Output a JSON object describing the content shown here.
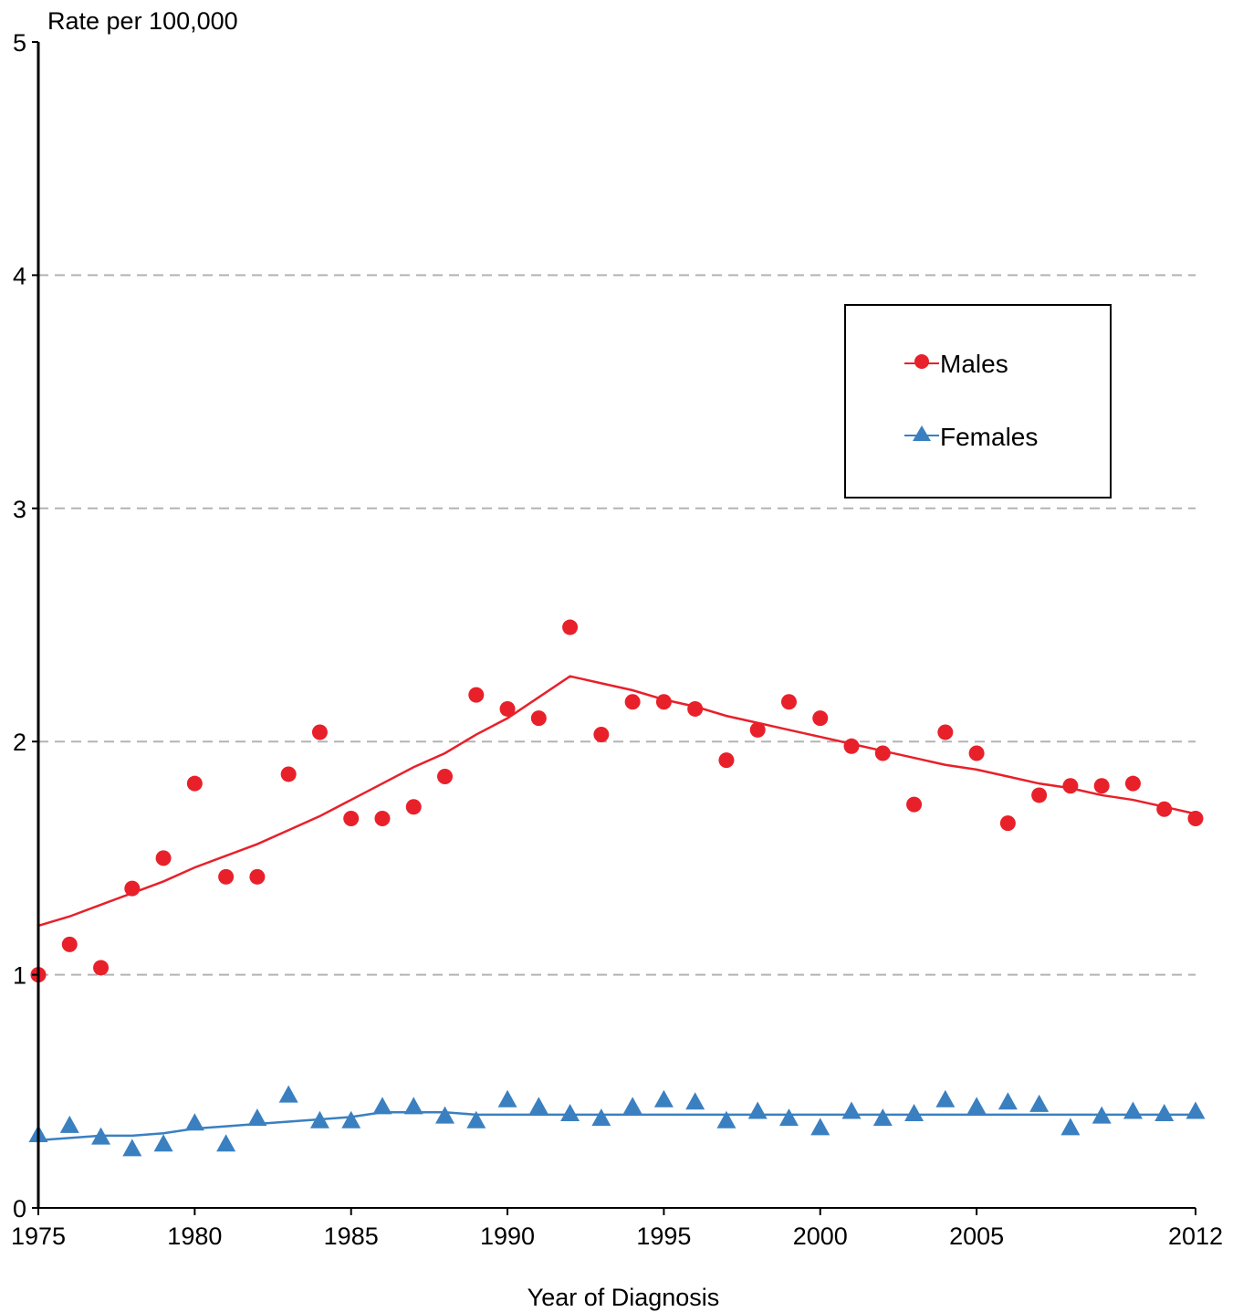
{
  "chart_data": {
    "type": "scatter",
    "ylabel": "Rate per 100,000",
    "xlabel": "Year of Diagnosis",
    "ylim": [
      0,
      5
    ],
    "xlim": [
      1975,
      2012
    ],
    "y_ticks": [
      "0",
      "1",
      "2",
      "3",
      "4",
      "5"
    ],
    "x_ticks": [
      "1975",
      "1980",
      "1985",
      "1990",
      "1995",
      "2000",
      "2005",
      "2012"
    ],
    "grid": "horizontal dashed",
    "legend_position": "top-right",
    "series": [
      {
        "name": "Males",
        "color": "#e8202a",
        "marker": "circle",
        "x": [
          1975,
          1976,
          1977,
          1978,
          1979,
          1980,
          1981,
          1982,
          1983,
          1984,
          1985,
          1986,
          1987,
          1988,
          1989,
          1990,
          1991,
          1992,
          1993,
          1994,
          1995,
          1996,
          1997,
          1998,
          1999,
          2000,
          2001,
          2002,
          2003,
          2004,
          2005,
          2006,
          2007,
          2008,
          2009,
          2010,
          2011,
          2012
        ],
        "values": [
          1.0,
          1.13,
          1.03,
          1.37,
          1.5,
          1.82,
          1.42,
          1.42,
          1.86,
          2.04,
          1.67,
          1.67,
          1.72,
          1.85,
          2.2,
          2.14,
          2.1,
          2.49,
          2.03,
          2.17,
          2.17,
          2.14,
          1.92,
          2.05,
          2.17,
          2.1,
          1.98,
          1.95,
          1.73,
          2.04,
          1.95,
          1.65,
          1.77,
          1.81,
          1.81,
          1.82,
          1.71,
          1.67
        ],
        "trend_x": [
          1975,
          1976,
          1977,
          1978,
          1979,
          1980,
          1981,
          1982,
          1983,
          1984,
          1985,
          1986,
          1987,
          1988,
          1989,
          1990,
          1991,
          1992,
          1993,
          1994,
          1995,
          1996,
          1997,
          1998,
          1999,
          2000,
          2001,
          2002,
          2003,
          2004,
          2005,
          2006,
          2007,
          2008,
          2009,
          2010,
          2011,
          2012
        ],
        "trend_values": [
          1.21,
          1.25,
          1.3,
          1.35,
          1.4,
          1.46,
          1.51,
          1.56,
          1.62,
          1.68,
          1.75,
          1.82,
          1.89,
          1.95,
          2.03,
          2.1,
          2.19,
          2.28,
          2.25,
          2.22,
          2.18,
          2.15,
          2.11,
          2.08,
          2.05,
          2.02,
          1.99,
          1.96,
          1.93,
          1.9,
          1.88,
          1.85,
          1.82,
          1.8,
          1.77,
          1.75,
          1.72,
          1.69
        ]
      },
      {
        "name": "Females",
        "color": "#3a80c1",
        "marker": "triangle",
        "x": [
          1975,
          1976,
          1977,
          1978,
          1979,
          1980,
          1981,
          1982,
          1983,
          1984,
          1985,
          1986,
          1987,
          1988,
          1989,
          1990,
          1991,
          1992,
          1993,
          1994,
          1995,
          1996,
          1997,
          1998,
          1999,
          2000,
          2001,
          2002,
          2003,
          2004,
          2005,
          2006,
          2007,
          2008,
          2009,
          2010,
          2011,
          2012
        ],
        "values": [
          0.31,
          0.35,
          0.3,
          0.25,
          0.27,
          0.36,
          0.27,
          0.38,
          0.48,
          0.37,
          0.37,
          0.43,
          0.43,
          0.39,
          0.37,
          0.46,
          0.43,
          0.4,
          0.38,
          0.43,
          0.46,
          0.45,
          0.37,
          0.41,
          0.38,
          0.34,
          0.41,
          0.38,
          0.4,
          0.46,
          0.43,
          0.45,
          0.44,
          0.34,
          0.39,
          0.41,
          0.4,
          0.41
        ],
        "trend_x": [
          1975,
          1976,
          1977,
          1978,
          1979,
          1980,
          1981,
          1982,
          1983,
          1984,
          1985,
          1986,
          1987,
          1988,
          1989,
          2012
        ],
        "trend_values": [
          0.29,
          0.3,
          0.31,
          0.31,
          0.32,
          0.34,
          0.35,
          0.36,
          0.37,
          0.38,
          0.39,
          0.41,
          0.41,
          0.41,
          0.4,
          0.4
        ]
      }
    ]
  }
}
